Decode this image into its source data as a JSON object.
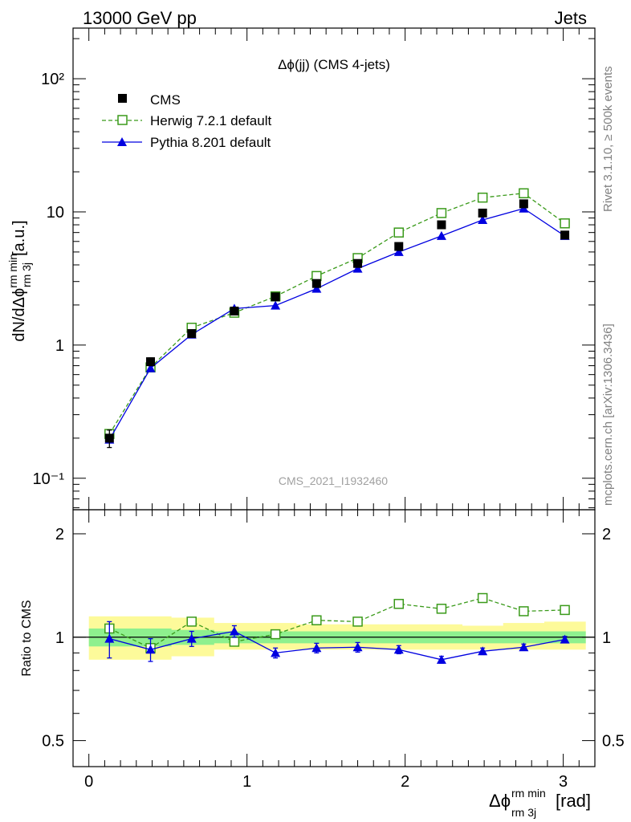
{
  "header": {
    "left": "13000 GeV pp",
    "right": "Jets"
  },
  "side": {
    "rivet": "Rivet 3.1.10, ≥ 500k events",
    "mcplots": "mcplots.cern.ch [arXiv:1306.3436]"
  },
  "watermark": "CMS_2021_I1932460",
  "chart_data": [
    {
      "type": "scatter",
      "panel": "main",
      "title": "Δϕ(jj) (CMS 4-jets)",
      "ylabel": "dN/dΔϕ rm min rm 3j [a.u.]",
      "xlabel": "Δϕ rm min rm 3j [rad]",
      "yscale": "log",
      "xlim": [
        -0.1,
        3.2
      ],
      "ylim": [
        0.058,
        240
      ],
      "ytick_labels": [
        "10⁻¹",
        "1",
        "10",
        "10²"
      ],
      "xtick_labels": [
        "0",
        "1",
        "2",
        "3"
      ],
      "legend_placement": "top-left",
      "x": [
        0.13,
        0.39,
        0.65,
        0.92,
        1.18,
        1.44,
        1.7,
        1.96,
        2.23,
        2.49,
        2.75,
        3.01
      ],
      "series": [
        {
          "name": "CMS",
          "marker": "square",
          "color": "#000000",
          "values": [
            0.2,
            0.75,
            1.22,
            1.8,
            2.3,
            2.9,
            4.1,
            5.5,
            8.0,
            9.8,
            11.5,
            6.7
          ]
        },
        {
          "name": "Herwig 7.2.1 default",
          "marker": "open-square",
          "line": "dashed",
          "color": "#3a9a1a",
          "values": [
            0.215,
            0.68,
            1.35,
            1.75,
            2.32,
            3.3,
            4.5,
            7.0,
            9.8,
            12.8,
            13.8,
            8.2
          ]
        },
        {
          "name": "Pythia 8.201 default",
          "marker": "triangle",
          "line": "solid",
          "color": "#0000e0",
          "values": [
            0.195,
            0.67,
            1.2,
            1.88,
            1.98,
            2.65,
            3.75,
            5.0,
            6.6,
            8.7,
            10.6,
            6.6
          ]
        }
      ]
    },
    {
      "type": "line",
      "panel": "ratio",
      "ylabel": "Ratio to CMS",
      "yscale": "log",
      "ylim": [
        0.42,
        2.35
      ],
      "ytick_labels": [
        "0.5",
        "1",
        "2"
      ],
      "reference_line": 1,
      "x": [
        0.13,
        0.39,
        0.65,
        0.92,
        1.18,
        1.44,
        1.7,
        1.96,
        2.23,
        2.49,
        2.75,
        3.01
      ],
      "bin_edges": [
        0.0,
        0.26,
        0.52,
        0.79,
        1.05,
        1.31,
        1.57,
        1.83,
        2.09,
        2.36,
        2.62,
        2.88,
        3.14
      ],
      "uncertainty_bands": {
        "stat_green": [
          [
            0.94,
            1.06
          ],
          [
            0.94,
            1.06
          ],
          [
            0.95,
            1.05
          ],
          [
            0.96,
            1.04
          ],
          [
            0.96,
            1.04
          ],
          [
            0.96,
            1.04
          ],
          [
            0.96,
            1.04
          ],
          [
            0.96,
            1.04
          ],
          [
            0.96,
            1.04
          ],
          [
            0.96,
            1.04
          ],
          [
            0.96,
            1.04
          ],
          [
            0.96,
            1.04
          ]
        ],
        "total_yellow": [
          [
            0.86,
            1.15
          ],
          [
            0.86,
            1.15
          ],
          [
            0.88,
            1.14
          ],
          [
            0.92,
            1.1
          ],
          [
            0.92,
            1.1
          ],
          [
            0.92,
            1.09
          ],
          [
            0.92,
            1.09
          ],
          [
            0.92,
            1.09
          ],
          [
            0.92,
            1.09
          ],
          [
            0.92,
            1.08
          ],
          [
            0.92,
            1.1
          ],
          [
            0.92,
            1.11
          ]
        ]
      },
      "series": [
        {
          "name": "Herwig 7.2.1 default",
          "marker": "open-square",
          "line": "dashed",
          "color": "#3a9a1a",
          "values": [
            1.06,
            0.93,
            1.11,
            0.97,
            1.02,
            1.12,
            1.11,
            1.25,
            1.21,
            1.3,
            1.19,
            1.2
          ]
        },
        {
          "name": "Pythia 8.201 default",
          "marker": "triangle",
          "line": "solid",
          "color": "#0000e0",
          "values": [
            0.99,
            0.92,
            0.99,
            1.04,
            0.9,
            0.93,
            0.935,
            0.92,
            0.86,
            0.91,
            0.935,
            0.985
          ],
          "errors": [
            0.12,
            0.07,
            0.05,
            0.04,
            0.03,
            0.03,
            0.03,
            0.025,
            0.02,
            0.02,
            0.02,
            0.02
          ]
        }
      ]
    }
  ]
}
